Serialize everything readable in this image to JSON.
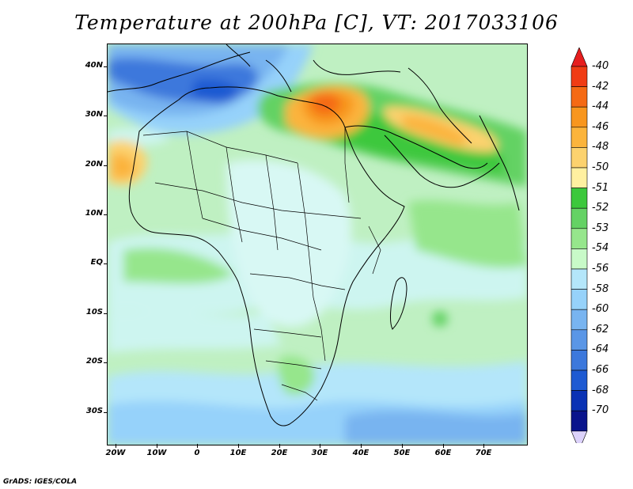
{
  "title": "Temperature at 200hPa [C], VT: 2017033106",
  "credit": "GrADS: IGES/COLA",
  "map": {
    "lat_labels": [
      "40N",
      "30N",
      "20N",
      "10N",
      "EQ",
      "10S",
      "20S",
      "30S"
    ],
    "lon_labels": [
      "20W",
      "10W",
      "0",
      "10E",
      "20E",
      "30E",
      "40E",
      "50E",
      "60E",
      "70E"
    ]
  },
  "legend": {
    "labels": [
      "-40",
      "-42",
      "-44",
      "-46",
      "-48",
      "-50",
      "-51",
      "-52",
      "-53",
      "-54",
      "-56",
      "-58",
      "-60",
      "-62",
      "-64",
      "-66",
      "-68",
      "-70"
    ],
    "colors": [
      "#f03c14",
      "#f56a14",
      "#f8961e",
      "#fbb43c",
      "#fcd26e",
      "#fff0a0",
      "#3cc83c",
      "#64d264",
      "#96e68c",
      "#c8fac8",
      "#b4e6fa",
      "#96d2fa",
      "#78b4f0",
      "#5a96e6",
      "#3c78dc",
      "#1e5ad2",
      "#0a32b4",
      "#0a148c"
    ],
    "top_arrow_color": "#e61e1e",
    "bottom_arrow_color": "#dcd2fa"
  }
}
